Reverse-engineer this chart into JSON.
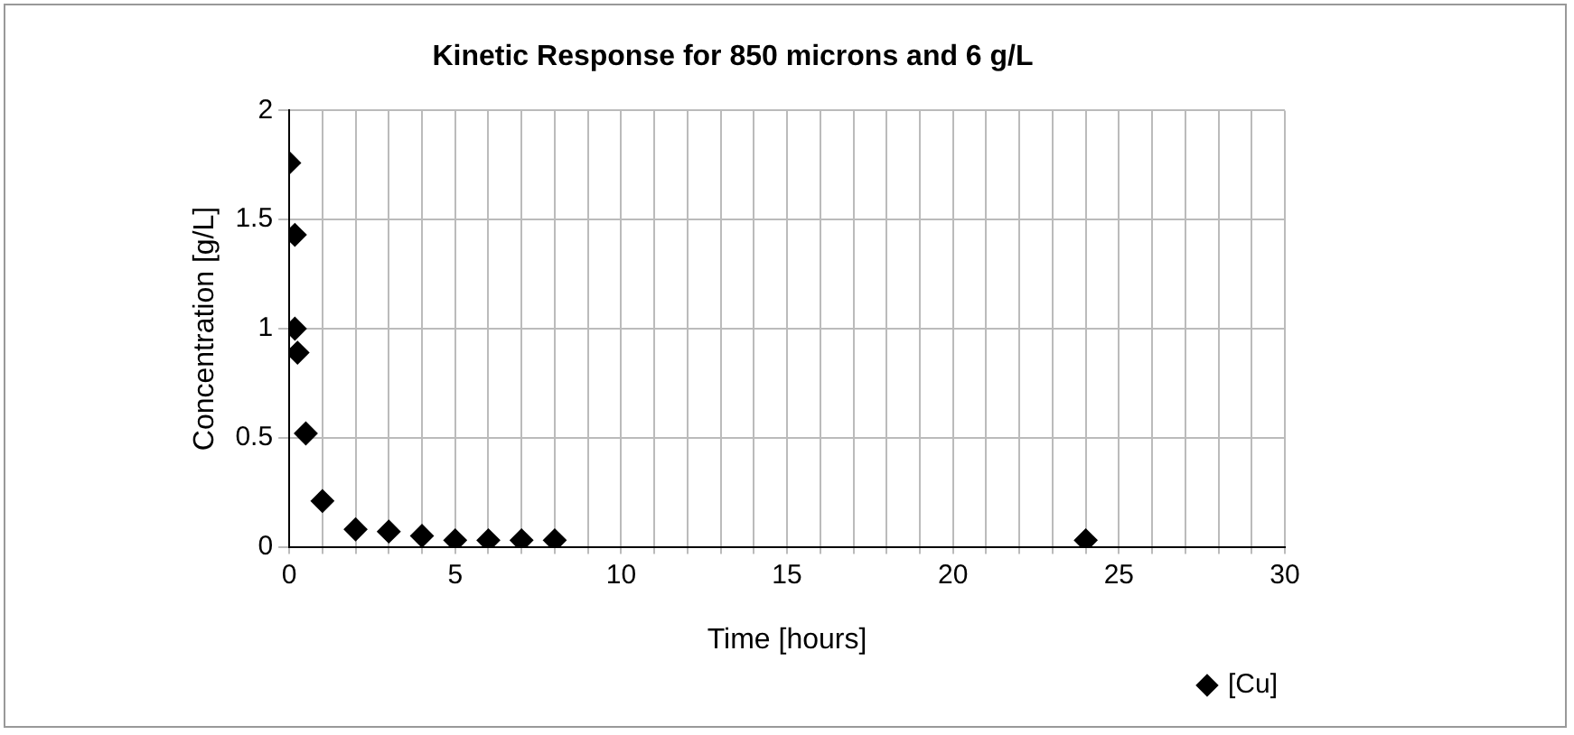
{
  "chart_data": {
    "type": "scatter",
    "title": "Kinetic Response for 850 microns and 6 g/L",
    "xlabel": "Time [hours]",
    "ylabel": "Concentration [g/L]",
    "series": [
      {
        "name": "[Cu]",
        "color": "#000000",
        "x": [
          0,
          0.17,
          0.17,
          0.25,
          0.5,
          1,
          2,
          3,
          4,
          5,
          6,
          7,
          8,
          24
        ],
        "values": [
          1.76,
          1.43,
          1.0,
          0.89,
          0.52,
          0.21,
          0.08,
          0.07,
          0.05,
          0.03,
          0.03,
          0.03,
          0.03,
          0.03
        ]
      }
    ],
    "xlim": [
      0,
      30
    ],
    "xticks": [
      0,
      5,
      10,
      15,
      20,
      25,
      30
    ],
    "ylim": [
      0,
      2
    ],
    "yticks": [
      0,
      0.5,
      1,
      1.5,
      2
    ],
    "grid": true,
    "legend": "bottom right",
    "marker": "diamond"
  }
}
